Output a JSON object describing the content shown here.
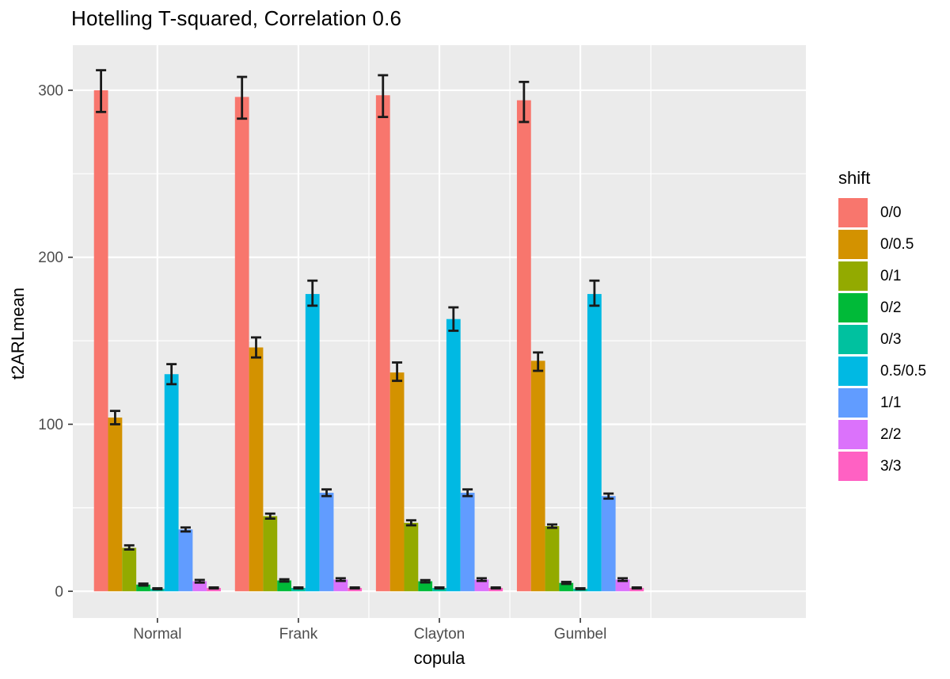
{
  "title": "Hotelling T-squared, Correlation 0.6",
  "chart_data": {
    "type": "bar",
    "grouped": true,
    "title": "Hotelling T-squared, Correlation 0.6",
    "xlabel": "copula",
    "ylabel": "t2ARLmean",
    "legend_title": "shift",
    "legend_position": "right",
    "categories": [
      "Normal",
      "Frank",
      "Clayton",
      "Gumbel"
    ],
    "y_ticks": [
      0,
      100,
      200,
      300
    ],
    "y_minor_ticks": [
      50,
      150,
      250
    ],
    "ylim": [
      -16,
      327
    ],
    "grid": true,
    "panel_bg": "#EBEBEB",
    "grid_color": "#FFFFFF",
    "error_bar_color": "#1A1A1A",
    "axis_text_color": "#4D4D4D",
    "tick_mark_color": "#333333",
    "series": [
      {
        "name": "0/0",
        "color": "#F8766D",
        "values": [
          300,
          296,
          297,
          294
        ],
        "err_low": [
          287,
          283,
          284,
          281
        ],
        "err_high": [
          312,
          308,
          309,
          305
        ]
      },
      {
        "name": "0/0.5",
        "color": "#D39200",
        "values": [
          104,
          146,
          131,
          138
        ],
        "err_low": [
          100,
          140,
          126,
          132
        ],
        "err_high": [
          108,
          152,
          137,
          143
        ]
      },
      {
        "name": "0/1",
        "color": "#93AA00",
        "values": [
          26,
          45,
          41,
          39
        ],
        "err_low": [
          25,
          43.5,
          39.5,
          38
        ],
        "err_high": [
          27.5,
          46.5,
          42.5,
          40
        ]
      },
      {
        "name": "0/2",
        "color": "#00BA38",
        "values": [
          4,
          6.5,
          6,
          5
        ],
        "err_low": [
          3.4,
          5.8,
          5.3,
          4.4
        ],
        "err_high": [
          4.6,
          7.2,
          6.7,
          5.6
        ]
      },
      {
        "name": "0/3",
        "color": "#00C19F",
        "values": [
          1.5,
          2,
          2,
          1.5
        ],
        "err_low": [
          1.2,
          1.7,
          1.7,
          1.2
        ],
        "err_high": [
          1.8,
          2.3,
          2.3,
          1.8
        ]
      },
      {
        "name": "0.5/0.5",
        "color": "#00B9E3",
        "values": [
          130,
          178,
          163,
          178
        ],
        "err_low": [
          124,
          171,
          156,
          171
        ],
        "err_high": [
          136,
          186,
          170,
          186
        ]
      },
      {
        "name": "1/1",
        "color": "#619CFF",
        "values": [
          37,
          59,
          59,
          57
        ],
        "err_low": [
          35.8,
          57,
          57,
          55.5
        ],
        "err_high": [
          38.2,
          61,
          61,
          58.5
        ]
      },
      {
        "name": "2/2",
        "color": "#DB72FB",
        "values": [
          6,
          7,
          7,
          7
        ],
        "err_low": [
          5.2,
          6.2,
          6.2,
          6.2
        ],
        "err_high": [
          6.8,
          7.8,
          7.8,
          7.8
        ]
      },
      {
        "name": "3/3",
        "color": "#FF61C3",
        "values": [
          2,
          2,
          2,
          2
        ],
        "err_low": [
          1.7,
          1.7,
          1.7,
          1.7
        ],
        "err_high": [
          2.3,
          2.3,
          2.3,
          2.3
        ]
      }
    ]
  }
}
